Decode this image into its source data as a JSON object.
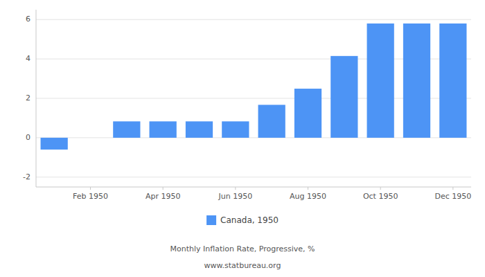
{
  "chart_data": {
    "type": "bar",
    "subtitle": "Monthly Inflation Rate, Progressive, %",
    "annotations": [
      "www.statbureau.org"
    ],
    "categories": [
      null,
      "Feb 1950",
      null,
      "Apr 1950",
      null,
      "Jun 1950",
      null,
      "Aug 1950",
      null,
      "Oct 1950",
      null,
      "Dec 1950"
    ],
    "series": [
      {
        "name": "Canada, 1950",
        "color": "#4d94f5",
        "values": [
          -0.6,
          null,
          0.83,
          0.83,
          0.83,
          0.83,
          1.67,
          2.49,
          4.15,
          5.8,
          5.8,
          5.8
        ]
      }
    ],
    "ylim": [
      -2.5,
      6.5
    ],
    "yticks": [
      -2,
      0,
      2,
      4,
      6
    ],
    "grid": true,
    "legend": "bottom"
  }
}
